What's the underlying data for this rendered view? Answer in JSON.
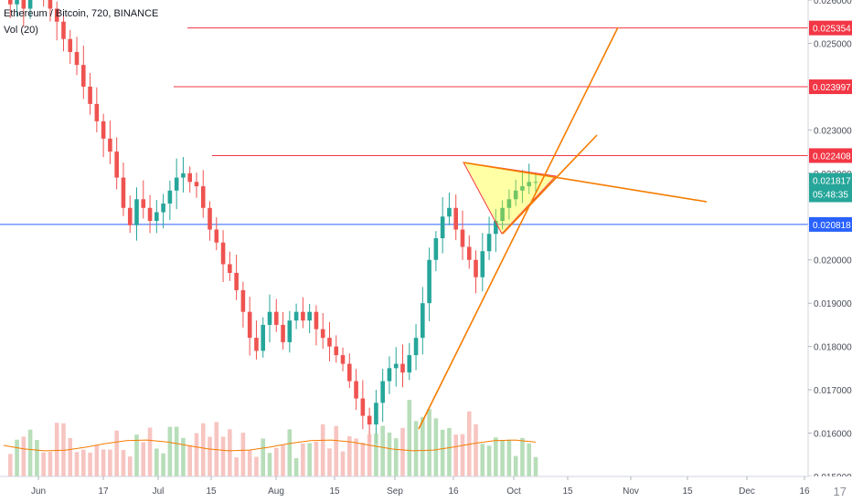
{
  "legend": {
    "symbol": "Ethereum / Bitcoin, 720, BINANCE",
    "volume": "Vol (20)"
  },
  "logo": "17",
  "chart_data": {
    "type": "candlestick",
    "ylim": [
      0.015,
      0.026
    ],
    "x_ticks": [
      "Jun",
      "17",
      "Jul",
      "15",
      "Aug",
      "15",
      "Sep",
      "16",
      "Oct",
      "15",
      "Nov",
      "15",
      "Dec",
      "16"
    ],
    "y_ticks": [
      "0.026000",
      "0.025000",
      "0.023000",
      "0.022000",
      "0.020000",
      "0.019000",
      "0.018000",
      "0.017000",
      "0.016000",
      "0.015000"
    ],
    "horizontal_levels": [
      {
        "value": 0.025354,
        "label": "0.025354",
        "color": "#f23645"
      },
      {
        "value": 0.023997,
        "label": "0.023997",
        "color": "#f23645"
      },
      {
        "value": 0.022408,
        "label": "0.022408",
        "color": "#f23645"
      },
      {
        "value": 0.020818,
        "label": "0.020818",
        "color": "#2962ff"
      }
    ],
    "last_price": {
      "value": 0.021817,
      "label": "0.021817",
      "countdown": "05:48:35",
      "color": "#26a69a"
    },
    "up_color": "#26a69a",
    "down_color": "#ef5350",
    "drawing_color": "#f57c00",
    "triangle_color": "#ffff00",
    "close_path": [
      0.0262,
      0.0259,
      0.0262,
      0.0258,
      0.0263,
      0.0265,
      0.0262,
      0.0258,
      0.0255,
      0.0251,
      0.0248,
      0.0245,
      0.024,
      0.0236,
      0.0232,
      0.0228,
      0.0225,
      0.0219,
      0.0212,
      0.0208,
      0.0214,
      0.0212,
      0.0209,
      0.0211,
      0.0213,
      0.0216,
      0.0219,
      0.022,
      0.0218,
      0.0217,
      0.0212,
      0.0207,
      0.0204,
      0.0199,
      0.0197,
      0.0193,
      0.0188,
      0.0182,
      0.0179,
      0.0185,
      0.0188,
      0.0185,
      0.0181,
      0.0186,
      0.0188,
      0.0186,
      0.0188,
      0.0184,
      0.0182,
      0.018,
      0.0178,
      0.0176,
      0.0172,
      0.0168,
      0.0164,
      0.0162,
      0.0167,
      0.0172,
      0.0175,
      0.0176,
      0.0174,
      0.0178,
      0.0182,
      0.019,
      0.02,
      0.0205,
      0.021,
      0.0212,
      0.0207,
      0.0203,
      0.02,
      0.0196,
      0.0202,
      0.0206,
      0.0209,
      0.0212,
      0.0214,
      0.0216,
      0.0217,
      0.0218,
      0.0218
    ]
  }
}
